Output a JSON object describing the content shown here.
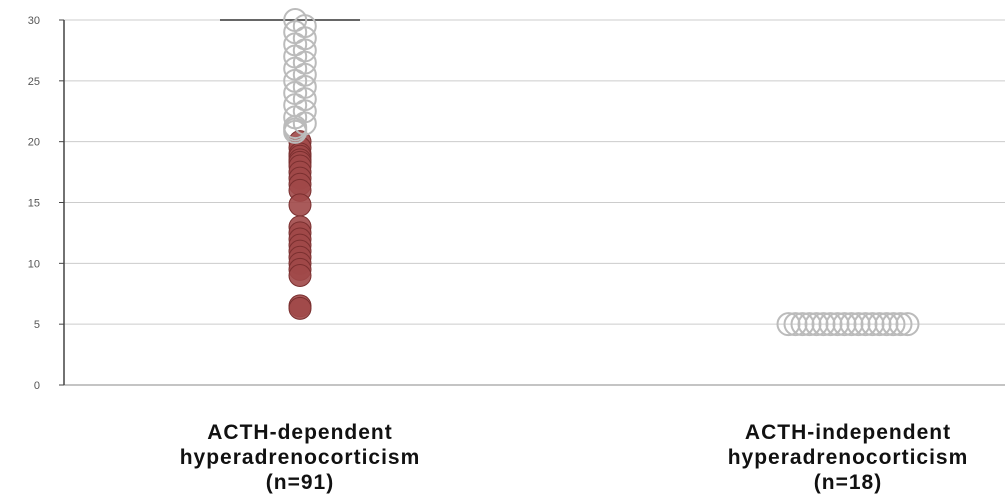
{
  "chart_data": {
    "type": "scatter",
    "title": "",
    "xlabel": "",
    "ylabel": "",
    "ylim": [
      0,
      30
    ],
    "yticks": [
      0,
      5,
      10,
      15,
      20,
      25,
      30
    ],
    "grid": true,
    "legend": "none",
    "categories": [
      {
        "lines": [
          "ACTH-dependent",
          "hyperadrenocorticism",
          "(n=91)"
        ]
      },
      {
        "lines": [
          "ACTH-independent",
          "hyperadrenocorticism",
          "(n=18)"
        ]
      }
    ],
    "series": [
      {
        "category_index": 0,
        "style": "filled",
        "color": "#a04848",
        "values": [
          20,
          19.5,
          19,
          18.8,
          18.5,
          18.3,
          18,
          17.5,
          17,
          16.5,
          16,
          14.8,
          13,
          12.5,
          12,
          11.5,
          11,
          10.5,
          10,
          9.5,
          9,
          6.5,
          6.3
        ]
      },
      {
        "category_index": 0,
        "style": "open",
        "color": "#bbbbbb",
        "values": [
          30,
          29.5,
          29,
          28.5,
          28,
          27.5,
          27,
          26.5,
          26,
          25.5,
          25,
          24.5,
          24,
          23.5,
          23,
          22.5,
          22,
          21.5,
          21.2,
          21,
          20.8
        ]
      },
      {
        "category_index": 1,
        "style": "open",
        "color": "#bbbbbb",
        "values": [
          5,
          5,
          5,
          5,
          5,
          5,
          5,
          5,
          5,
          5,
          5,
          5,
          5,
          5,
          5,
          5,
          5,
          5
        ]
      }
    ],
    "reference_line": {
      "category_index": 0,
      "value": 30,
      "color": "#333333"
    }
  }
}
